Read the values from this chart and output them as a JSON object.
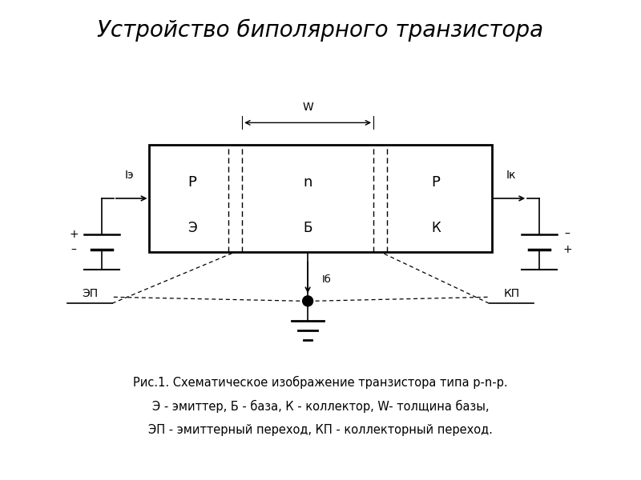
{
  "title": "Устройство биполярного транзистора",
  "title_fontsize": 20,
  "caption_line1": "Рис.1. Схематическое изображение транзистора типа p-n-p.",
  "caption_line2": "Э - эмиттер, Б - база, К - коллектор, W- толщина базы,",
  "caption_line3": "ЭП - эмиттерный переход, КП - коллекторный переход.",
  "caption_fontsize": 10.5,
  "bg_color": "#ffffff"
}
